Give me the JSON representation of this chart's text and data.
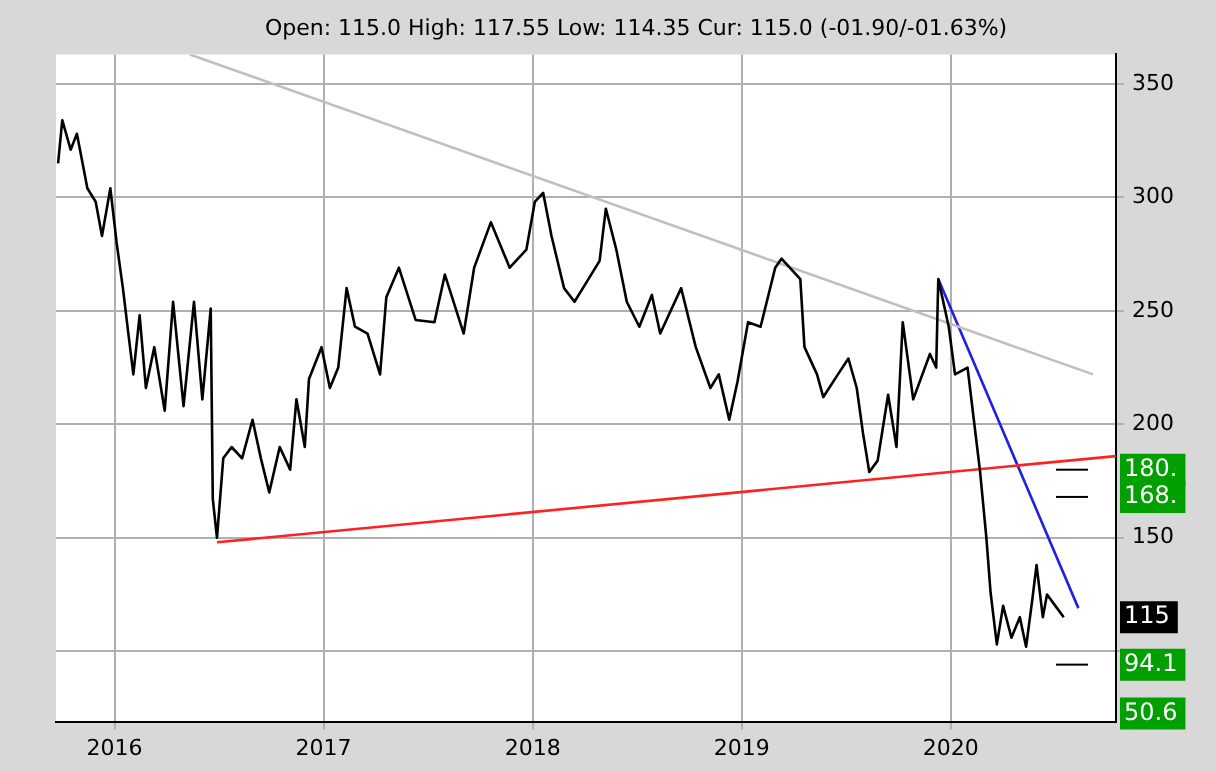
{
  "chart_data": {
    "type": "line",
    "subtitle": "Open: 115.0 High: 117.55 Low: 114.35 Cur: 115.0 (-01.90/-01.63%)",
    "xlim": [
      2015.72,
      2020.79
    ],
    "xticks": [
      2016,
      2017,
      2018,
      2019,
      2020
    ],
    "ylim": [
      69,
      363
    ],
    "yticks": [
      {
        "value": 100,
        "label": null
      },
      150,
      200,
      250,
      300,
      350
    ],
    "grid": true,
    "legend": false,
    "marker": "none",
    "line_style": "solid",
    "series": [
      {
        "color": "#000000",
        "x": [
          2015.73,
          2015.75,
          2015.79,
          2015.82,
          2015.87,
          2015.91,
          2015.94,
          2015.98,
          2016.01,
          2016.04,
          2016.07,
          2016.09,
          2016.12,
          2016.15,
          2016.19,
          2016.24,
          2016.28,
          2016.33,
          2016.38,
          2016.42,
          2016.46,
          2016.47,
          2016.49,
          2016.52,
          2016.56,
          2016.61,
          2016.66,
          2016.7,
          2016.74,
          2016.79,
          2016.84,
          2016.87,
          2016.91,
          2016.93,
          2016.99,
          2017.03,
          2017.07,
          2017.11,
          2017.15,
          2017.21,
          2017.27,
          2017.3,
          2017.36,
          2017.44,
          2017.53,
          2017.58,
          2017.67,
          2017.72,
          2017.8,
          2017.89,
          2017.97,
          2018.01,
          2018.05,
          2018.09,
          2018.15,
          2018.2,
          2018.26,
          2018.32,
          2018.35,
          2018.4,
          2018.45,
          2018.51,
          2018.57,
          2018.61,
          2018.71,
          2018.78,
          2018.85,
          2018.89,
          2018.94,
          2018.98,
          2019.03,
          2019.09,
          2019.16,
          2019.19,
          2019.28,
          2019.3,
          2019.36,
          2019.39,
          2019.46,
          2019.51,
          2019.55,
          2019.58,
          2019.61,
          2019.65,
          2019.7,
          2019.74,
          2019.77,
          2019.82,
          2019.9,
          2019.93,
          2019.94,
          2019.99,
          2020.02,
          2020.08,
          2020.11,
          2020.14,
          2020.17,
          2020.19,
          2020.22,
          2020.25,
          2020.29,
          2020.33,
          2020.36,
          2020.39,
          2020.41,
          2020.44,
          2020.46,
          2020.5,
          2020.54
        ],
        "values": [
          315,
          334,
          321,
          328,
          304,
          298,
          283,
          304,
          280,
          260,
          237,
          222,
          248,
          216,
          234,
          206,
          254,
          208,
          254,
          211,
          251,
          167,
          150,
          185,
          190,
          185,
          202,
          185,
          170,
          190,
          180,
          211,
          190,
          220,
          234,
          216,
          225,
          260,
          243,
          240,
          222,
          256,
          269,
          246,
          245,
          266,
          240,
          269,
          289,
          269,
          277,
          298,
          302,
          283,
          260,
          254,
          263,
          272,
          295,
          277,
          254,
          243,
          257,
          240,
          260,
          234,
          216,
          222,
          202,
          219,
          245,
          243,
          269,
          273,
          264,
          234,
          222,
          212,
          222,
          229,
          216,
          196,
          179,
          184,
          213,
          190,
          245,
          211,
          231,
          225,
          264,
          243,
          222,
          225,
          202,
          179,
          150,
          126,
          103,
          120,
          106,
          115,
          102,
          123,
          138,
          115,
          125,
          120,
          115
        ]
      },
      {
        "color": "#c0c0c0",
        "x": [
          2016.36,
          2020.68
        ],
        "values": [
          363,
          222
        ]
      },
      {
        "color": "#ff2020",
        "x": [
          2016.49,
          2020.79
        ],
        "values": [
          148,
          186
        ]
      },
      {
        "color": "#2020e0",
        "x": [
          2019.94,
          2020.61
        ],
        "values": [
          264,
          119
        ]
      }
    ],
    "ref_lines": [
      {
        "axis": "y",
        "value": 180,
        "label": "180."
      },
      {
        "axis": "y",
        "value": 168,
        "label": "168."
      },
      {
        "axis": "y",
        "value": 94.1,
        "label": "94.1"
      }
    ],
    "annotations": [
      {
        "text": "115",
        "y": 115
      },
      "50.6"
    ]
  }
}
